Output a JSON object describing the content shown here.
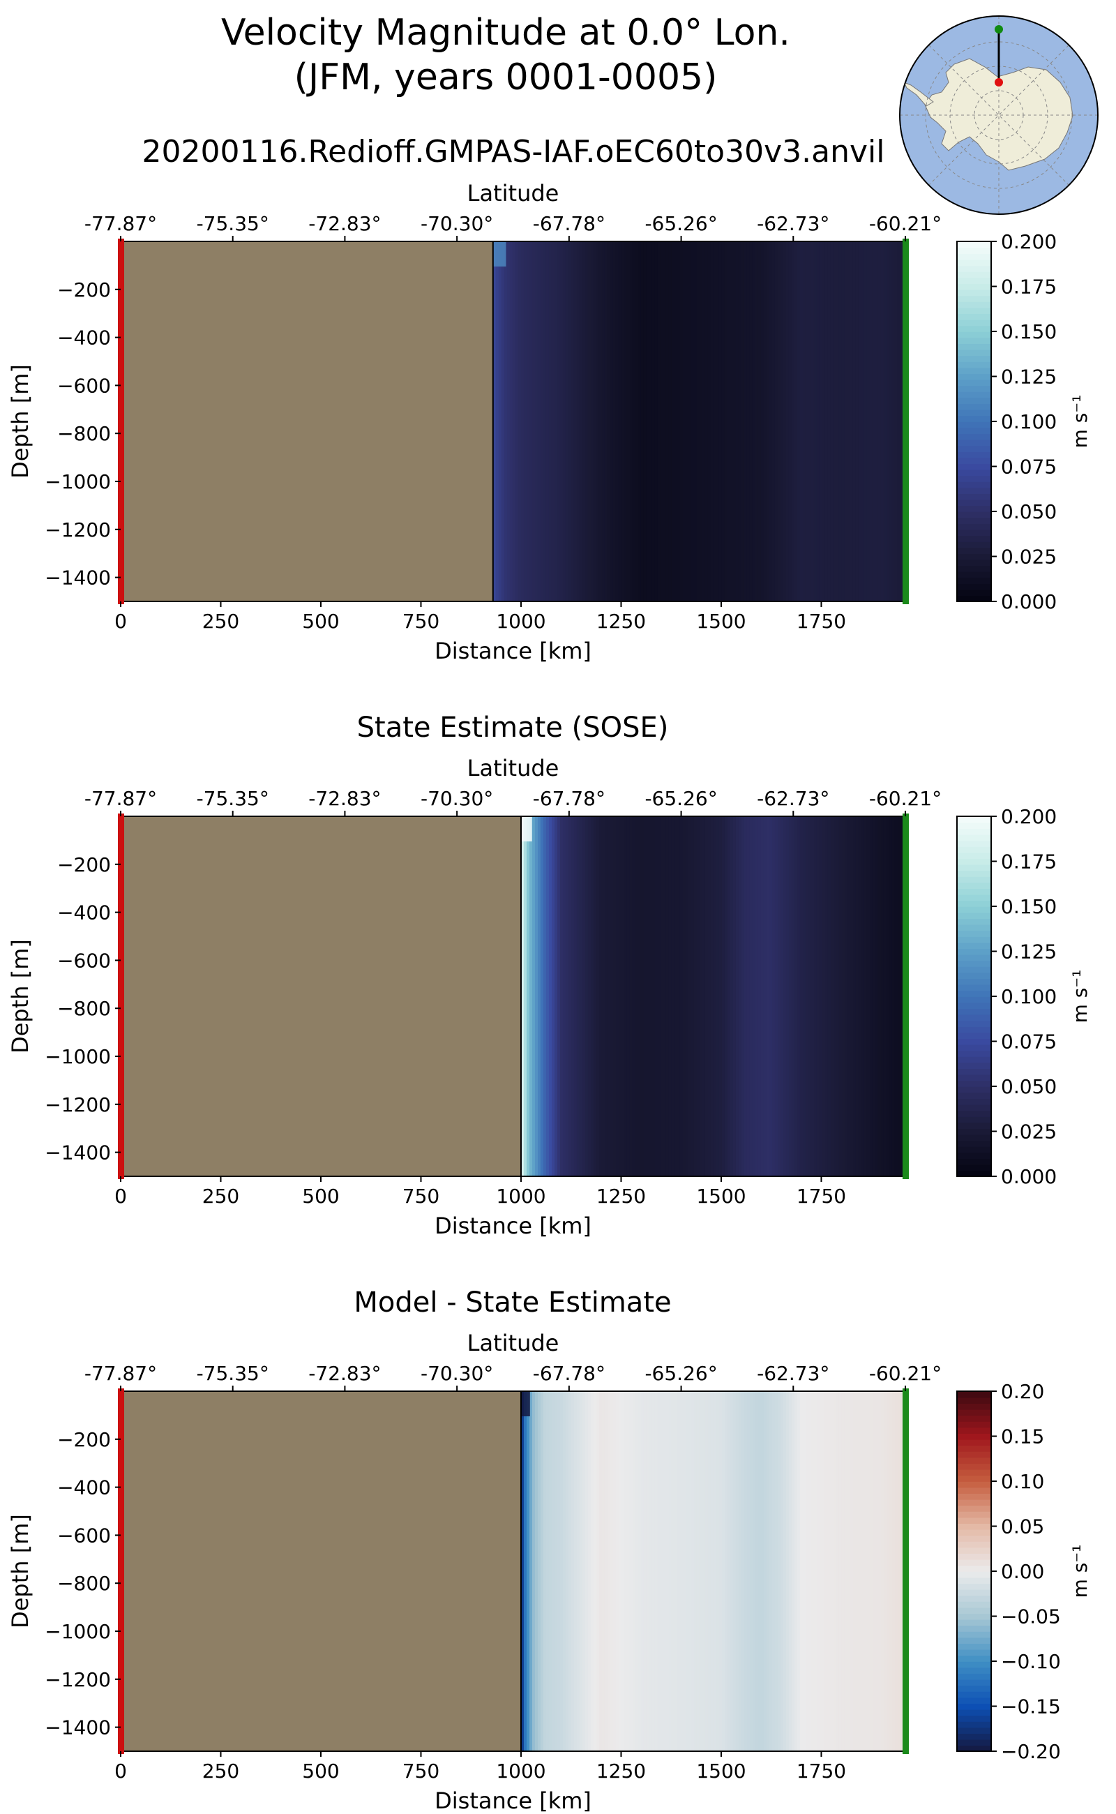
{
  "figure": {
    "title_line1": "Velocity Magnitude at 0.0° Lon.",
    "title_line2": "(JFM, years 0001-0005)",
    "run_name": "20200116.Redioff.GMPAS-IAF.oEC60to30v3.anvil"
  },
  "inset_map": {
    "description": "south-polar stereographic map with transect line",
    "ocean_color": "#9cb9e3",
    "land_color": "#efedd9",
    "start_marker_color": "#e01010",
    "end_marker_color": "#118a11"
  },
  "colors": {
    "land_fill": "#8e7f65",
    "start_edge": "#cc1010",
    "end_edge": "#1b8a1b"
  },
  "chart_data": [
    {
      "type": "heatmap",
      "id": "model",
      "title": "",
      "xlabel": "Distance [km]",
      "ylabel": "Depth [m]",
      "top_xlabel": "Latitude",
      "xlim": [
        0,
        1960
      ],
      "ylim": [
        -1500,
        0
      ],
      "xticks": [
        0,
        250,
        500,
        750,
        1000,
        1250,
        1500,
        1750
      ],
      "xtick_labels": [
        "0",
        "250",
        "500",
        "750",
        "1000",
        "1250",
        "1500",
        "1750"
      ],
      "yticks": [
        -200,
        -400,
        -600,
        -800,
        -1000,
        -1200,
        -1400
      ],
      "ytick_labels": [
        "−200",
        "−400",
        "−600",
        "−800",
        "−1000",
        "−1200",
        "−1400"
      ],
      "top_xticks": [
        0,
        280,
        560,
        840,
        1120,
        1400,
        1680,
        1960
      ],
      "top_xtick_labels": [
        "-77.87°",
        "-75.35°",
        "-72.83°",
        "-70.30°",
        "-67.78°",
        "-65.26°",
        "-62.73°",
        "-60.21°"
      ],
      "land_until_km": 930,
      "colorbar": {
        "label": "m s⁻¹",
        "min": 0.0,
        "max": 0.2,
        "ticks": [
          "0.000",
          "0.025",
          "0.050",
          "0.075",
          "0.100",
          "0.125",
          "0.150",
          "0.175",
          "0.200"
        ],
        "colormap": [
          "#040410",
          "#1a1a36",
          "#2e2f66",
          "#3a4aa0",
          "#3f74b8",
          "#5da0c8",
          "#8ccfd6",
          "#c8ece8",
          "#f5fcfb"
        ]
      },
      "profile": {
        "km": [
          930,
          960,
          1000,
          1100,
          1200,
          1300,
          1400,
          1500,
          1600,
          1700,
          1800,
          1900,
          1960
        ],
        "value": [
          0.072,
          0.055,
          0.045,
          0.035,
          0.02,
          0.01,
          0.012,
          0.015,
          0.018,
          0.03,
          0.028,
          0.03,
          0.025
        ]
      },
      "surface_jet": {
        "km": 945,
        "value": 0.11
      }
    },
    {
      "type": "heatmap",
      "id": "sose",
      "title": "State Estimate (SOSE)",
      "xlabel": "Distance [km]",
      "ylabel": "Depth [m]",
      "top_xlabel": "Latitude",
      "xlim": [
        0,
        1960
      ],
      "ylim": [
        -1500,
        0
      ],
      "xticks": [
        0,
        250,
        500,
        750,
        1000,
        1250,
        1500,
        1750
      ],
      "xtick_labels": [
        "0",
        "250",
        "500",
        "750",
        "1000",
        "1250",
        "1500",
        "1750"
      ],
      "yticks": [
        -200,
        -400,
        -600,
        -800,
        -1000,
        -1200,
        -1400
      ],
      "ytick_labels": [
        "−200",
        "−400",
        "−600",
        "−800",
        "−1000",
        "−1200",
        "−1400"
      ],
      "top_xticks": [
        0,
        280,
        560,
        840,
        1120,
        1400,
        1680,
        1960
      ],
      "top_xtick_labels": [
        "-77.87°",
        "-75.35°",
        "-72.83°",
        "-70.30°",
        "-67.78°",
        "-65.26°",
        "-62.73°",
        "-60.21°"
      ],
      "land_until_km": 1000,
      "colorbar": {
        "label": "m s⁻¹",
        "min": 0.0,
        "max": 0.2,
        "ticks": [
          "0.000",
          "0.025",
          "0.050",
          "0.075",
          "0.100",
          "0.125",
          "0.150",
          "0.175",
          "0.200"
        ],
        "colormap": [
          "#040410",
          "#1a1a36",
          "#2e2f66",
          "#3a4aa0",
          "#3f74b8",
          "#5da0c8",
          "#8ccfd6",
          "#c8ece8",
          "#f5fcfb"
        ]
      },
      "profile": {
        "km": [
          1000,
          1020,
          1060,
          1100,
          1200,
          1300,
          1400,
          1500,
          1560,
          1620,
          1700,
          1800,
          1900,
          1960
        ],
        "value": [
          0.19,
          0.14,
          0.09,
          0.05,
          0.025,
          0.02,
          0.022,
          0.03,
          0.045,
          0.05,
          0.035,
          0.025,
          0.015,
          0.01
        ]
      },
      "surface_jet": {
        "km": 1010,
        "value": 0.2
      }
    },
    {
      "type": "heatmap",
      "id": "diff",
      "title": "Model - State Estimate",
      "xlabel": "Distance [km]",
      "ylabel": "Depth [m]",
      "top_xlabel": "Latitude",
      "xlim": [
        0,
        1960
      ],
      "ylim": [
        -1500,
        0
      ],
      "xticks": [
        0,
        250,
        500,
        750,
        1000,
        1250,
        1500,
        1750
      ],
      "xtick_labels": [
        "0",
        "250",
        "500",
        "750",
        "1000",
        "1250",
        "1500",
        "1750"
      ],
      "yticks": [
        -200,
        -400,
        -600,
        -800,
        -1000,
        -1200,
        -1400
      ],
      "ytick_labels": [
        "−200",
        "−400",
        "−600",
        "−800",
        "−1000",
        "−1200",
        "−1400"
      ],
      "top_xticks": [
        0,
        280,
        560,
        840,
        1120,
        1400,
        1680,
        1960
      ],
      "top_xtick_labels": [
        "-77.87°",
        "-75.35°",
        "-72.83°",
        "-70.30°",
        "-67.78°",
        "-65.26°",
        "-62.73°",
        "-60.21°"
      ],
      "land_until_km": 1000,
      "colorbar": {
        "label": "m s⁻¹",
        "min": -0.2,
        "max": 0.2,
        "ticks": [
          "−0.20",
          "−0.15",
          "−0.10",
          "−0.05",
          "0.00",
          "0.05",
          "0.10",
          "0.15",
          "0.20"
        ],
        "colormap": [
          "#14183f",
          "#0d4fb4",
          "#3f8fc4",
          "#a7c7d4",
          "#ebebec",
          "#e4b9a6",
          "#c65e3f",
          "#a0171d",
          "#3c0911"
        ]
      },
      "profile": {
        "km": [
          1000,
          1010,
          1030,
          1060,
          1100,
          1150,
          1200,
          1300,
          1400,
          1500,
          1560,
          1600,
          1650,
          1700,
          1800,
          1900,
          1960
        ],
        "value": [
          -0.19,
          -0.12,
          -0.06,
          -0.03,
          -0.025,
          -0.01,
          0.005,
          -0.005,
          -0.008,
          -0.012,
          -0.025,
          -0.03,
          -0.02,
          0.0,
          0.004,
          0.006,
          0.012
        ]
      },
      "surface_jet": {
        "km": 1005,
        "value": -0.2
      }
    }
  ]
}
